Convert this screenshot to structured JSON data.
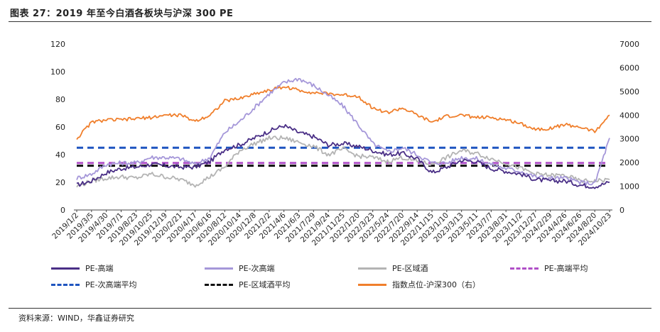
{
  "figure_title": "图表 27：2019 年至今白酒各板块与沪深 300 PE",
  "source": "资料来源：WIND，华鑫证券研究",
  "chart_data": {
    "type": "line",
    "x_tick_labels": [
      "2019/1/2",
      "2019/3/5",
      "2019/4/30",
      "2019/7/1",
      "2019/8/23",
      "2019/10/25",
      "2019/12/19",
      "2020/2/21",
      "2020/4/17",
      "2020/6/16",
      "2020/8/12",
      "2020/10/14",
      "2020/12/8",
      "2021/2/2",
      "2021/4/6",
      "2021/6/3",
      "2021/7/29",
      "2021/9/24",
      "2021/11/25",
      "2022/1/20",
      "2022/3/23",
      "2022/5/24",
      "2022/7/20",
      "2022/9/14",
      "2022/11/15",
      "2023/1/10",
      "2023/3/13",
      "2023/5/11",
      "2023/7/7",
      "2023/8/31",
      "2023/11/2",
      "2023/12/27",
      "2024/2/29",
      "2024/4/26",
      "2024/6/26",
      "2024/8/20",
      "2024/10/23"
    ],
    "y_left": {
      "min": 0,
      "max": 120,
      "ticks": [
        0,
        20,
        40,
        60,
        80,
        100,
        120
      ]
    },
    "y_right": {
      "min": 0,
      "max": 7000,
      "ticks": [
        0,
        1000,
        2000,
        3000,
        4000,
        5000,
        6000,
        7000
      ]
    },
    "grid": false,
    "legend_position": "bottom",
    "series": [
      {
        "name": "PE-高端",
        "axis": "left",
        "color": "#4a2f86",
        "style": "solid",
        "values": [
          18,
          21,
          27,
          30,
          31,
          33,
          32,
          31,
          31,
          35,
          44,
          47,
          52,
          57,
          61,
          56,
          53,
          47,
          48,
          46,
          43,
          40,
          41,
          37,
          27,
          31,
          36,
          35,
          30,
          28,
          26,
          22,
          21,
          21,
          18,
          17,
          20
        ]
      },
      {
        "name": "PE-次高端",
        "axis": "left",
        "color": "#a597d9",
        "style": "solid",
        "values": [
          23,
          26,
          33,
          34,
          34,
          38,
          38,
          37,
          33,
          38,
          56,
          64,
          74,
          84,
          92,
          95,
          90,
          83,
          75,
          62,
          48,
          42,
          45,
          40,
          34,
          34,
          38,
          37,
          33,
          30,
          28,
          24,
          23,
          23,
          20,
          19,
          52
        ]
      },
      {
        "name": "PE-区域酒",
        "axis": "left",
        "color": "#b4b4b4",
        "style": "solid",
        "values": [
          17,
          21,
          23,
          24,
          23,
          26,
          24,
          22,
          18,
          24,
          31,
          43,
          48,
          52,
          52,
          49,
          46,
          40,
          44,
          39,
          38,
          35,
          38,
          35,
          33,
          38,
          43,
          41,
          37,
          34,
          30,
          26,
          25,
          25,
          21,
          21,
          22
        ]
      },
      {
        "name": "PE-高端平均",
        "axis": "left",
        "color": "#b050c8",
        "style": "dashed",
        "values": [
          34,
          34,
          34,
          34,
          34,
          34,
          34,
          34,
          34,
          34,
          34,
          34,
          34,
          34,
          34,
          34,
          34,
          34,
          34,
          34,
          34,
          34,
          34,
          34,
          34,
          34,
          34,
          34,
          34,
          34,
          34,
          34,
          34,
          34,
          34,
          34,
          34
        ]
      },
      {
        "name": "PE-次高端平均",
        "axis": "left",
        "color": "#1f55c0",
        "style": "dashed",
        "values": [
          45,
          45,
          45,
          45,
          45,
          45,
          45,
          45,
          45,
          45,
          45,
          45,
          45,
          45,
          45,
          45,
          45,
          45,
          45,
          45,
          45,
          45,
          45,
          45,
          45,
          45,
          45,
          45,
          45,
          45,
          45,
          45,
          45,
          45,
          45,
          45,
          45
        ]
      },
      {
        "name": "PE-区域酒平均",
        "axis": "left",
        "color": "#111111",
        "style": "dashed",
        "values": [
          32,
          32,
          32,
          32,
          32,
          32,
          32,
          32,
          32,
          32,
          32,
          32,
          32,
          32,
          32,
          32,
          32,
          32,
          32,
          32,
          32,
          32,
          32,
          32,
          32,
          32,
          32,
          32,
          32,
          32,
          32,
          32,
          32,
          32,
          32,
          32,
          32
        ]
      },
      {
        "name": "指数点位-沪深300（右）",
        "axis": "right",
        "color": "#f07f2c",
        "style": "solid",
        "values": [
          3000,
          3700,
          3800,
          3800,
          3850,
          3900,
          4000,
          4000,
          3750,
          4000,
          4600,
          4700,
          4900,
          5050,
          5200,
          5050,
          4950,
          4900,
          4850,
          4800,
          4300,
          4100,
          4300,
          4000,
          3700,
          3950,
          4000,
          3900,
          3900,
          3800,
          3650,
          3400,
          3450,
          3600,
          3500,
          3300,
          4000
        ]
      }
    ]
  }
}
